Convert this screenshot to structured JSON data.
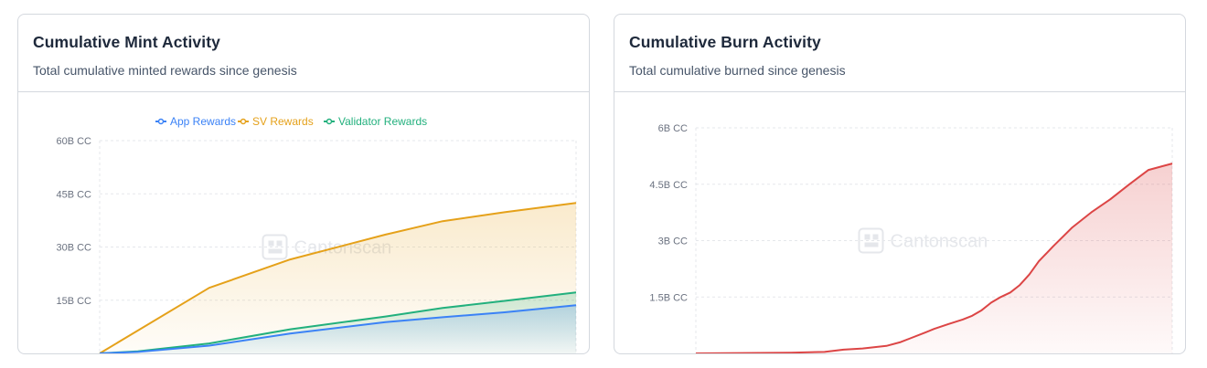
{
  "cards": [
    {
      "title": "Cumulative Mint Activity",
      "subtitle": "Total cumulative minted rewards since genesis"
    },
    {
      "title": "Cumulative Burn Activity",
      "subtitle": "Total cumulative burned since genesis"
    }
  ],
  "watermark": "Cantonscan",
  "colors": {
    "app": "#3b82f6",
    "sv": "#e5a11a",
    "validator": "#22b07d",
    "burn": "#dc4545"
  },
  "chart_data": [
    {
      "type": "area",
      "title": "Cumulative Mint Activity",
      "xlabel": "",
      "ylabel": "",
      "ylim": [
        0,
        60
      ],
      "y_ticks": [
        {
          "value": 15,
          "label": "15B CC"
        },
        {
          "value": 30,
          "label": "30B CC"
        },
        {
          "value": 45,
          "label": "45B CC"
        },
        {
          "value": 60,
          "label": "60B CC"
        }
      ],
      "xlim": [
        0,
        100
      ],
      "grid": true,
      "legend": "top-center",
      "series": [
        {
          "name": "App Rewards",
          "color": "#3b82f6",
          "x": [
            0,
            8,
            23,
            40,
            60,
            72,
            85,
            100
          ],
          "y": [
            0,
            0.4,
            2.2,
            5.6,
            8.8,
            10.2,
            11.6,
            13.6
          ]
        },
        {
          "name": "SV Rewards",
          "color": "#e5a11a",
          "x": [
            0,
            23,
            40,
            60,
            72,
            85,
            100
          ],
          "y": [
            0,
            18.5,
            26.5,
            33.5,
            37.3,
            39.8,
            42.4
          ]
        },
        {
          "name": "Validator Rewards",
          "color": "#22b07d",
          "x": [
            0,
            8,
            23,
            40,
            60,
            72,
            85,
            100
          ],
          "y": [
            0,
            0.6,
            2.8,
            6.8,
            10.4,
            12.8,
            14.8,
            17.2
          ]
        }
      ]
    },
    {
      "type": "area",
      "title": "Cumulative Burn Activity",
      "xlabel": "",
      "ylabel": "",
      "ylim": [
        0,
        6
      ],
      "y_ticks": [
        {
          "value": 1.5,
          "label": "1.5B CC"
        },
        {
          "value": 3,
          "label": "3B CC"
        },
        {
          "value": 4.5,
          "label": "4.5B CC"
        },
        {
          "value": 6,
          "label": "6B CC"
        }
      ],
      "xlim": [
        0,
        100
      ],
      "grid": true,
      "series": [
        {
          "name": "",
          "color": "#dc4545",
          "x": [
            0,
            10,
            20,
            27,
            31,
            35,
            40,
            43,
            45,
            48,
            50,
            53,
            56,
            58,
            60,
            62,
            64,
            66,
            68,
            70,
            72,
            75,
            79,
            83,
            87,
            91,
            95,
            100
          ],
          "y": [
            0,
            0.01,
            0.02,
            0.04,
            0.1,
            0.13,
            0.2,
            0.3,
            0.4,
            0.55,
            0.65,
            0.78,
            0.9,
            1.0,
            1.15,
            1.35,
            1.5,
            1.62,
            1.82,
            2.1,
            2.45,
            2.85,
            3.35,
            3.75,
            4.1,
            4.5,
            4.88,
            5.05
          ]
        }
      ]
    }
  ]
}
